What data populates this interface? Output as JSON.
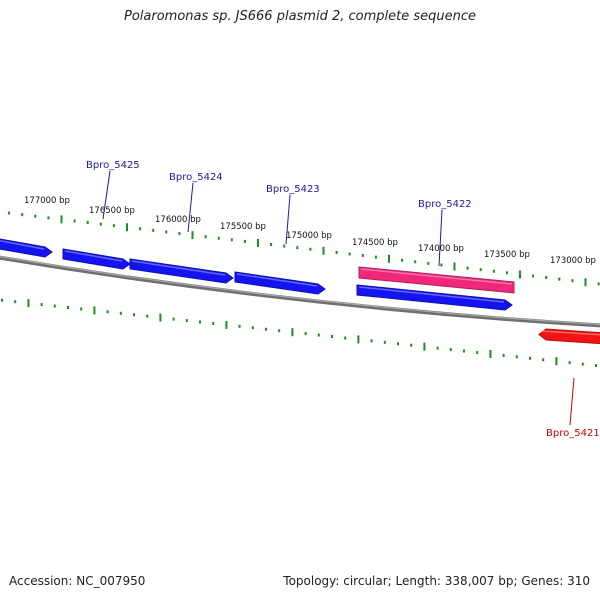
{
  "title": "Polaromonas sp. JS666 plasmid 2, complete sequence",
  "footer": {
    "accession": "Accession: NC_007950",
    "summary": "Topology: circular; Length: 338,007 bp; Genes: 310"
  },
  "colors": {
    "backbone": "#7f7f7f",
    "tick": "#1e8c1e",
    "gene_forward": "#1414f0",
    "gene_pink": "#f0287a",
    "gene_red": "#f01414",
    "label_blue": "#1a1aa0",
    "label_red": "#cc0000"
  },
  "ruler": {
    "labels": [
      "177000 bp",
      "176500 bp",
      "176000 bp",
      "175500 bp",
      "175000 bp",
      "174500 bp",
      "174000 bp",
      "173500 bp",
      "173000 bp"
    ]
  },
  "genes": [
    {
      "name": "",
      "color": "gene_forward",
      "label_color": "label_blue"
    },
    {
      "name": "Bpro_5425",
      "color": "gene_forward",
      "label_color": "label_blue"
    },
    {
      "name": "Bpro_5424",
      "color": "gene_forward",
      "label_color": "label_blue"
    },
    {
      "name": "Bpro_5423",
      "color": "gene_forward",
      "label_color": "label_blue"
    },
    {
      "name": "",
      "color": "gene_pink",
      "label_color": "label_blue"
    },
    {
      "name": "Bpro_5422",
      "color": "gene_forward",
      "label_color": "label_blue"
    },
    {
      "name": "Bpro_5421",
      "color": "gene_red",
      "label_color": "label_red"
    }
  ]
}
